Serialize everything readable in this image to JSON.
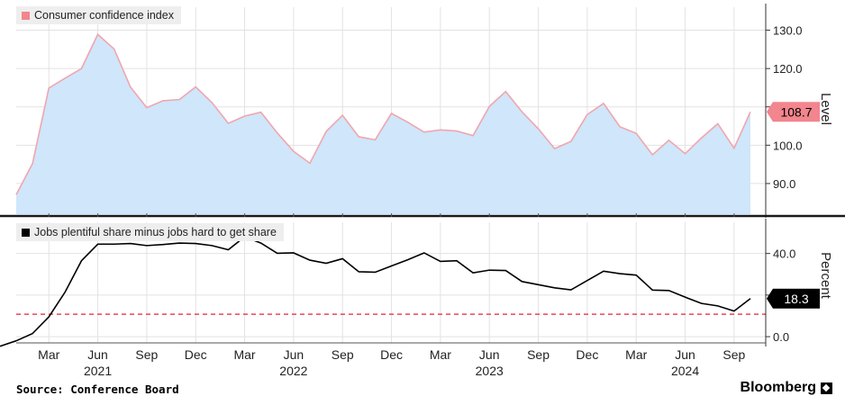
{
  "chart_data": [
    {
      "type": "area",
      "series": [
        {
          "name": "Consumer confidence index",
          "x": [
            "2021-01",
            "2021-02",
            "2021-03",
            "2021-04",
            "2021-05",
            "2021-06",
            "2021-07",
            "2021-08",
            "2021-09",
            "2021-10",
            "2021-11",
            "2021-12",
            "2022-01",
            "2022-02",
            "2022-03",
            "2022-04",
            "2022-05",
            "2022-06",
            "2022-07",
            "2022-08",
            "2022-09",
            "2022-10",
            "2022-11",
            "2022-12",
            "2023-01",
            "2023-02",
            "2023-03",
            "2023-04",
            "2023-05",
            "2023-06",
            "2023-07",
            "2023-08",
            "2023-09",
            "2023-10",
            "2023-11",
            "2023-12",
            "2024-01",
            "2024-02",
            "2024-03",
            "2024-04",
            "2024-05",
            "2024-06",
            "2024-07",
            "2024-08",
            "2024-09",
            "2024-10"
          ],
          "values": [
            87.1,
            95.2,
            114.9,
            117.5,
            120.0,
            128.9,
            125.1,
            115.2,
            109.8,
            111.6,
            111.9,
            115.2,
            111.1,
            105.7,
            107.6,
            108.6,
            103.2,
            98.4,
            95.3,
            103.6,
            107.8,
            102.2,
            101.4,
            108.3,
            106.0,
            103.4,
            104.0,
            103.7,
            102.5,
            110.1,
            114.0,
            108.7,
            104.3,
            99.1,
            101.0,
            108.0,
            110.9,
            104.8,
            103.1,
            97.5,
            101.3,
            97.8,
            101.9,
            105.6,
            99.2,
            108.7
          ]
        }
      ],
      "ylabel": "Level",
      "ylim": [
        82,
        136
      ],
      "yticks": [
        "130.0",
        "120.0",
        "110.0",
        "100.0",
        "90.0"
      ],
      "last_value_label": "108.7",
      "line_color": "#f0a6ae",
      "fill_color": "#cfe6fb",
      "badge_color": "#f2858d"
    },
    {
      "type": "line",
      "series": [
        {
          "name": "Jobs plentiful share minus jobs hard to get share",
          "x": [
            "2021-01",
            "2021-02",
            "2021-03",
            "2021-04",
            "2021-05",
            "2021-06",
            "2021-07",
            "2021-08",
            "2021-09",
            "2021-10",
            "2021-11",
            "2021-12",
            "2022-01",
            "2022-02",
            "2022-03",
            "2022-04",
            "2022-05",
            "2022-06",
            "2022-07",
            "2022-08",
            "2022-09",
            "2022-10",
            "2022-11",
            "2022-12",
            "2023-01",
            "2023-02",
            "2023-03",
            "2023-04",
            "2023-05",
            "2023-06",
            "2023-07",
            "2023-08",
            "2023-09",
            "2023-10",
            "2023-11",
            "2023-12",
            "2024-01",
            "2024-02",
            "2024-03",
            "2024-04",
            "2024-05",
            "2024-06",
            "2024-07",
            "2024-08",
            "2024-09",
            "2024-10"
          ],
          "values": [
            -2.0,
            1.5,
            9.5,
            21.5,
            36.5,
            44.5,
            44.5,
            44.8,
            43.8,
            44.3,
            45.0,
            44.8,
            43.8,
            41.8,
            48.0,
            45.0,
            40.1,
            40.3,
            36.8,
            35.3,
            37.5,
            31.2,
            31.0,
            34.0,
            37.0,
            40.3,
            36.2,
            36.5,
            30.7,
            32.0,
            31.8,
            26.5,
            25.0,
            23.5,
            22.5,
            27.0,
            31.5,
            30.3,
            29.6,
            22.4,
            22.2,
            19.0,
            16.0,
            14.8,
            12.3,
            18.3
          ]
        }
      ],
      "ylabel": "Percent",
      "ylim": [
        -3,
        55
      ],
      "yticks": [
        "40.0",
        "20.0",
        "0.0"
      ],
      "reference_line": 10.8,
      "last_value_label": "18.3",
      "line_color": "#000000",
      "reference_color": "#e5203a",
      "badge_color": "#000000"
    }
  ],
  "x_axis": {
    "month_labels": [
      {
        "date": "2021-03",
        "label": "Mar"
      },
      {
        "date": "2021-06",
        "label": "Jun"
      },
      {
        "date": "2021-09",
        "label": "Sep"
      },
      {
        "date": "2021-12",
        "label": "Dec"
      },
      {
        "date": "2022-03",
        "label": "Mar"
      },
      {
        "date": "2022-06",
        "label": "Jun"
      },
      {
        "date": "2022-09",
        "label": "Sep"
      },
      {
        "date": "2022-12",
        "label": "Dec"
      },
      {
        "date": "2023-03",
        "label": "Mar"
      },
      {
        "date": "2023-06",
        "label": "Jun"
      },
      {
        "date": "2023-09",
        "label": "Sep"
      },
      {
        "date": "2023-12",
        "label": "Dec"
      },
      {
        "date": "2024-03",
        "label": "Mar"
      },
      {
        "date": "2024-06",
        "label": "Jun"
      },
      {
        "date": "2024-09",
        "label": "Sep"
      }
    ],
    "year_labels": [
      {
        "date": "2021-06",
        "label": "2021"
      },
      {
        "date": "2022-06",
        "label": "2022"
      },
      {
        "date": "2023-06",
        "label": "2023"
      },
      {
        "date": "2024-06",
        "label": "2024"
      }
    ]
  },
  "footer": {
    "source": "Source: Conference Board",
    "brand": "Bloomberg"
  }
}
